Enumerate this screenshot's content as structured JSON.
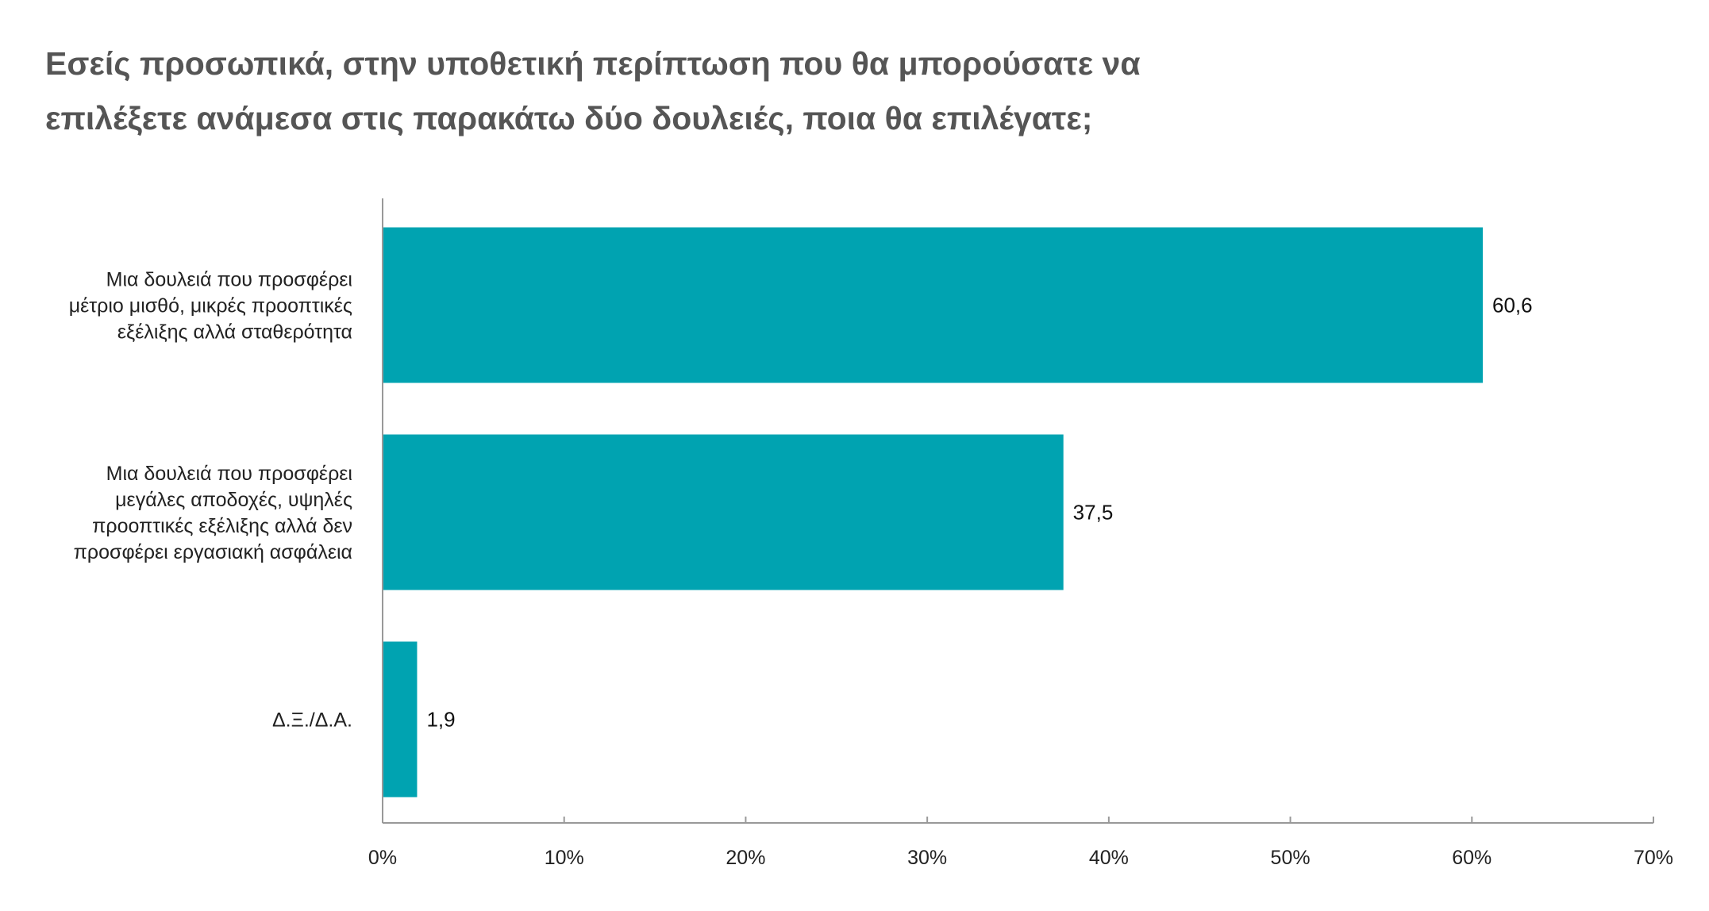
{
  "chart_data": {
    "type": "bar",
    "orientation": "horizontal",
    "title_lines": [
      "Εσείς προσωπικά, στην υποθετική περίπτωση που θα μπορούσατε να",
      "επιλέξετε ανάμεσα στις παρακάτω δύο δουλειές, ποια θα επιλέγατε;"
    ],
    "categories": [
      [
        "Μια δουλειά που προσφέρει",
        "μέτριο μισθό, μικρές προοπτικές",
        "εξέλιξης αλλά σταθερότητα"
      ],
      [
        "Μια δουλειά που προσφέρει",
        "μεγάλες αποδοχές, υψηλές",
        "προοπτικές εξέλιξης αλλά δεν",
        "προσφέρει εργασιακή ασφάλεια"
      ],
      [
        "Δ.Ξ./Δ.Α."
      ]
    ],
    "values": [
      60.6,
      37.5,
      1.9
    ],
    "value_labels": [
      "60,6",
      "37,5",
      "1,9"
    ],
    "xlim": [
      0,
      70
    ],
    "x_ticks": [
      0,
      10,
      20,
      30,
      40,
      50,
      60,
      70
    ],
    "x_tick_labels": [
      "0%",
      "10%",
      "20%",
      "30%",
      "40%",
      "50%",
      "60%",
      "70%"
    ],
    "bar_color": "#00a3b1",
    "axis_color": "#999999",
    "grid": false,
    "legend": "none"
  }
}
